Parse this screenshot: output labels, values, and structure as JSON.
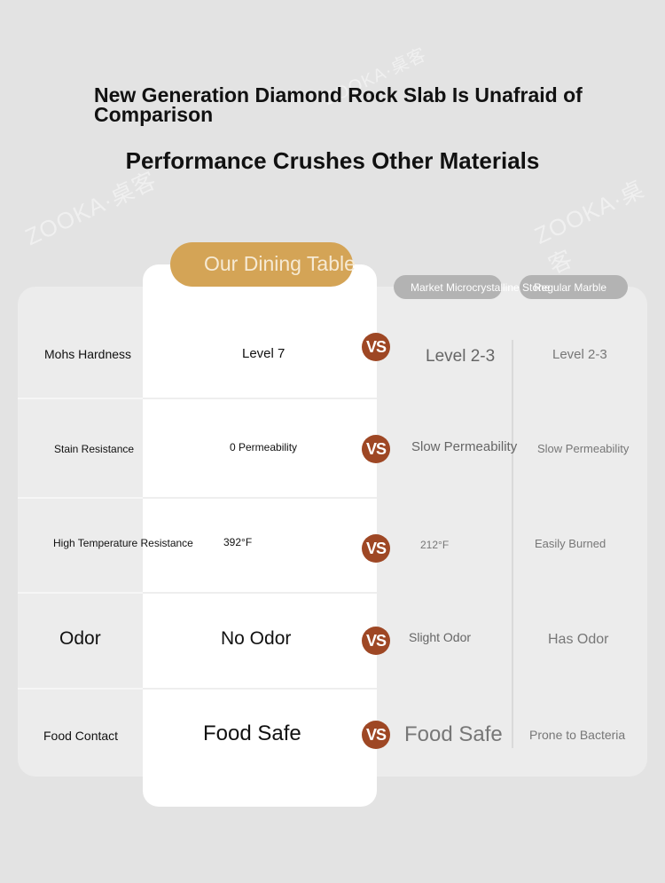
{
  "watermark": "ZOOKA·桌客",
  "headline": "New Generation Diamond Rock Slab Is Unafraid of Comparison",
  "subheadline": "Performance Crushes Other Materials",
  "columns": {
    "ours": "Our Dining Table",
    "microcrystalline": "Market Microcrystalline Stone",
    "marble": "Regular Marble"
  },
  "vs_label": "VS",
  "rows": [
    {
      "attribute": "Mohs Hardness",
      "ours": "Level 7",
      "microcrystalline": "Level 2-3",
      "marble": "Level 2-3"
    },
    {
      "attribute": "Stain Resistance",
      "ours": "0 Permeability",
      "microcrystalline": "Slow Permeability",
      "marble": "Slow Permeability"
    },
    {
      "attribute": "High Temperature Resistance",
      "ours": "392°F",
      "microcrystalline": "212°F",
      "marble": "Easily Burned"
    },
    {
      "attribute": "Odor",
      "ours": "No Odor",
      "microcrystalline": "Slight Odor",
      "marble": "Has Odor"
    },
    {
      "attribute": "Food Contact",
      "ours": "Food Safe",
      "microcrystalline": "Food Safe",
      "marble": "Prone to Bacteria"
    }
  ],
  "colors": {
    "background": "#e3e3e3",
    "accent_gold": "#d4a456",
    "vs_badge": "#9e4724",
    "competitor_pill": "#b3b3b3"
  }
}
